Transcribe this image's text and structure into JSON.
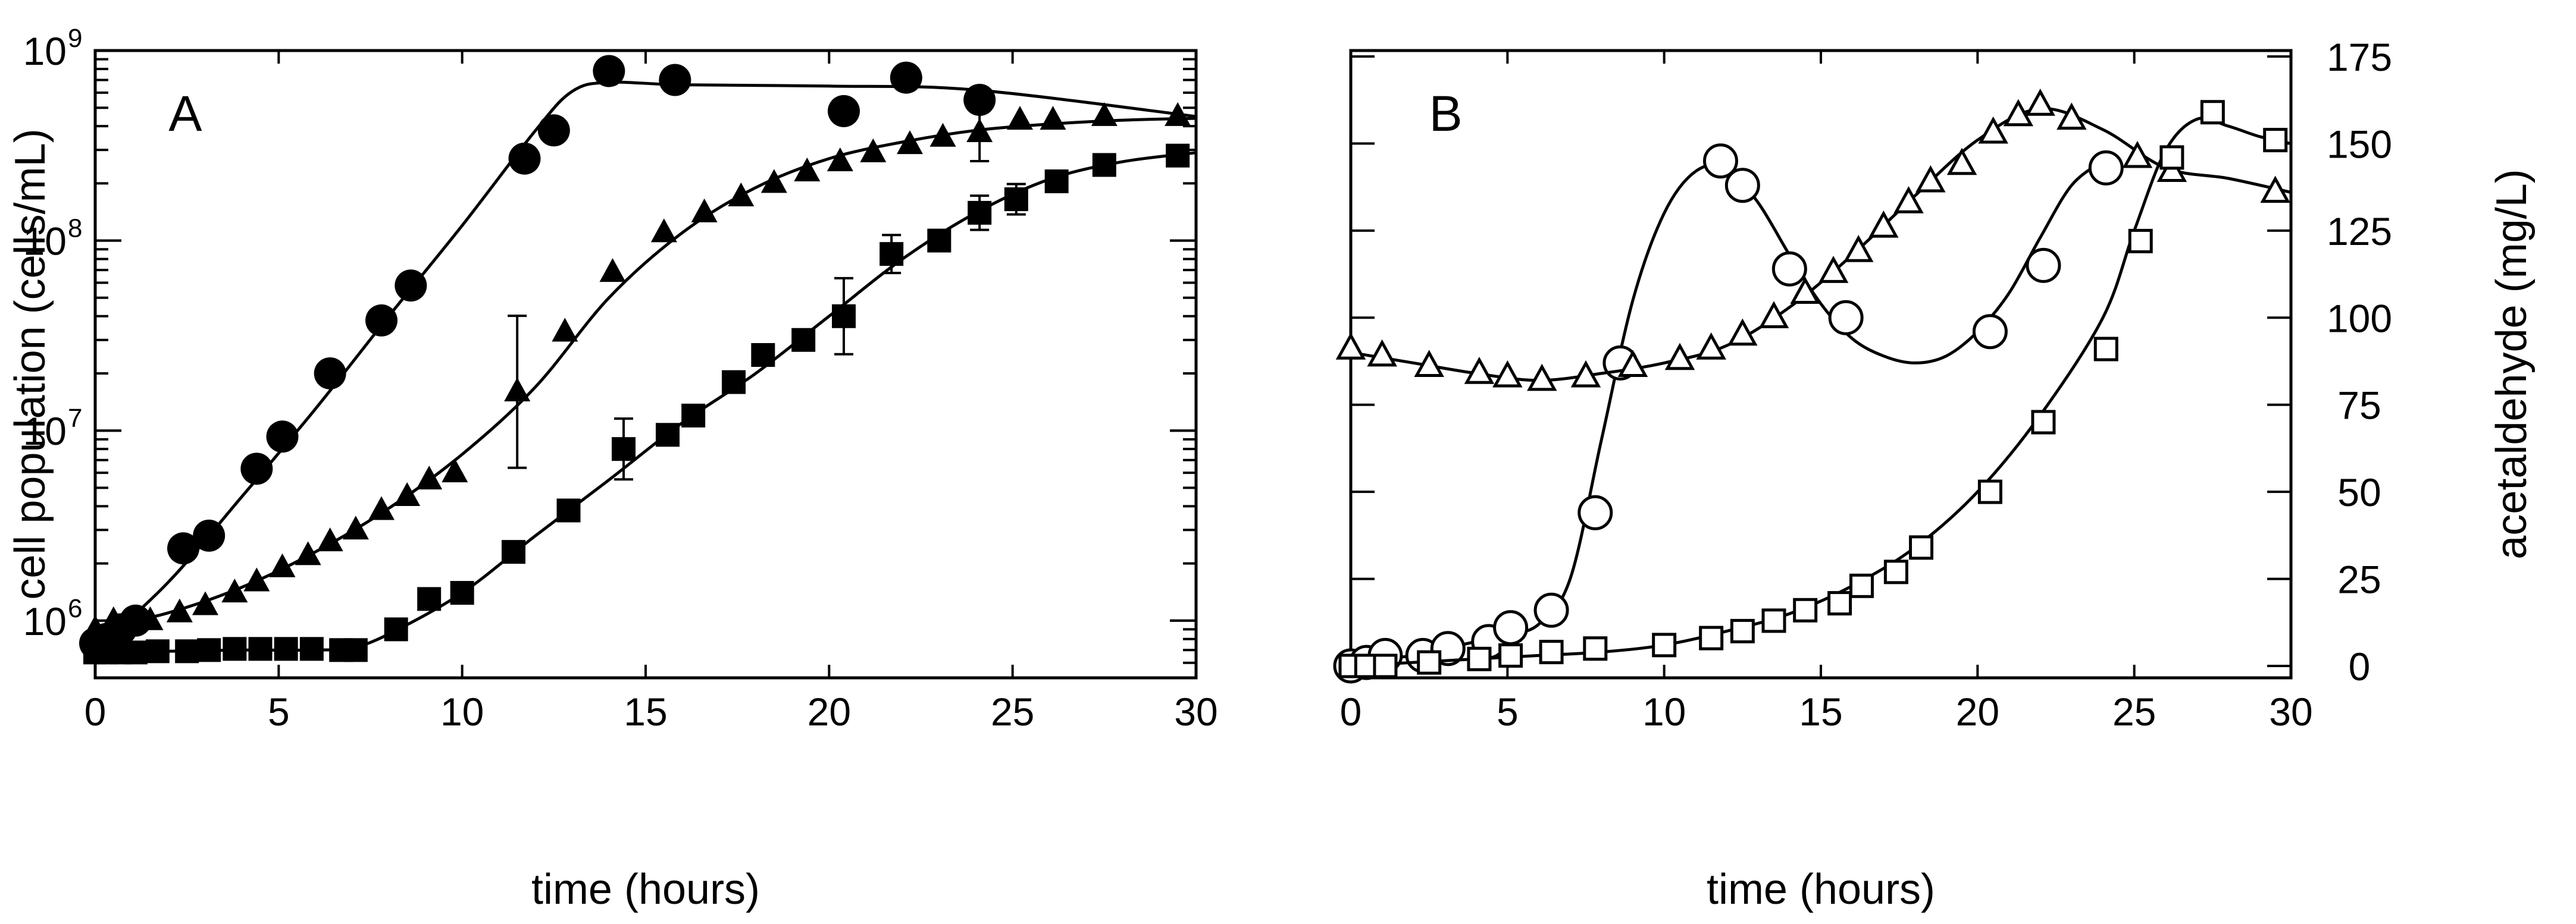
{
  "chart_data": [
    {
      "type": "scatter",
      "panel_label": "A",
      "xlabel": "time (hours)",
      "ylabel": "cell population (cells/mL)",
      "xlim": [
        0,
        30
      ],
      "ylim": [
        500000,
        1000000000
      ],
      "yscale": "log",
      "x_ticks": [
        "0",
        "5",
        "10",
        "15",
        "20",
        "25",
        "30"
      ],
      "y_ticks": [
        {
          "value": 1000000,
          "base": "10",
          "exp": "6"
        },
        {
          "value": 10000000,
          "base": "10",
          "exp": "7"
        },
        {
          "value": 100000000,
          "base": "10",
          "exp": "8"
        },
        {
          "value": 1000000000,
          "base": "10",
          "exp": "9"
        }
      ],
      "grid": false,
      "legend": false,
      "series": [
        {
          "marker": "circle-filled",
          "x": [
            0,
            0.3,
            0.7,
            1.1,
            2.4,
            3.1,
            4.4,
            5.1,
            6.4,
            7.8,
            8.6,
            11.7,
            12.5,
            14.0,
            15.8,
            20.4,
            22.1,
            24.1
          ],
          "y": [
            760000,
            800000,
            900000,
            1000000,
            2400000,
            2800000,
            6300000,
            9300000,
            20000000,
            38000000,
            58000000,
            270000000,
            380000000,
            780000000,
            700000000,
            480000000,
            720000000,
            550000000
          ],
          "fit_x": [
            0,
            2,
            4,
            6,
            8,
            10,
            12,
            13,
            14,
            16,
            20,
            24,
            30
          ],
          "fit_y": [
            700000,
            1600000,
            4500000,
            13000000,
            40000000,
            120000000,
            380000000,
            610000000,
            680000000,
            660000000,
            650000000,
            620000000,
            450000000
          ]
        },
        {
          "marker": "triangle-filled",
          "x": [
            0,
            0.5,
            1.0,
            1.5,
            2.3,
            3.0,
            3.8,
            4.4,
            5.1,
            5.8,
            6.4,
            7.1,
            7.8,
            8.5,
            9.1,
            9.8,
            11.5,
            12.8,
            14.1,
            15.5,
            16.6,
            17.6,
            18.5,
            19.4,
            20.3,
            21.2,
            22.2,
            23.1,
            24.1,
            25.2,
            26.1,
            27.5,
            29.5
          ],
          "y": [
            900000,
            1000000,
            1000000,
            1000000,
            1100000,
            1200000,
            1400000,
            1600000,
            1900000,
            2200000,
            2600000,
            3000000,
            3800000,
            4500000,
            5500000,
            6000000,
            16000000,
            33000000,
            68000000,
            110000000,
            140000000,
            170000000,
            200000000,
            230000000,
            260000000,
            290000000,
            320000000,
            350000000,
            370000000,
            430000000,
            430000000,
            450000000,
            450000000
          ],
          "error": [
            0,
            0,
            0,
            0,
            0,
            0,
            0,
            0,
            0,
            0,
            0,
            0,
            0,
            0,
            0,
            0,
            0.4,
            0,
            0,
            0,
            0,
            0,
            0,
            0,
            0,
            0,
            0,
            0,
            0.15,
            0,
            0,
            0,
            0
          ],
          "fit_x": [
            0,
            2,
            4,
            6,
            8,
            10,
            12,
            14,
            16,
            18,
            20,
            22,
            24,
            26,
            28,
            30
          ],
          "fit_y": [
            900000,
            1100000,
            1500000,
            2300000,
            3900000,
            7500000,
            17000000,
            50000000,
            110000000,
            190000000,
            270000000,
            330000000,
            380000000,
            410000000,
            430000000,
            440000000
          ]
        },
        {
          "marker": "square-filled",
          "x": [
            0,
            0.3,
            0.7,
            1.1,
            1.7,
            2.5,
            3.1,
            3.8,
            4.5,
            5.2,
            5.9,
            6.7,
            7.1,
            8.2,
            9.1,
            10.0,
            11.4,
            12.9,
            14.4,
            15.6,
            16.3,
            17.4,
            18.2,
            19.3,
            20.4,
            21.7,
            23.0,
            24.1,
            25.1,
            26.2,
            27.5,
            29.5
          ],
          "y": [
            680000,
            680000,
            680000,
            680000,
            690000,
            690000,
            700000,
            710000,
            710000,
            710000,
            710000,
            700000,
            700000,
            900000,
            1300000,
            1400000,
            2300000,
            3800000,
            8000000,
            9500000,
            12000000,
            18000000,
            25000000,
            30000000,
            40000000,
            85000000,
            100000000,
            140000000,
            165000000,
            205000000,
            250000000,
            280000000
          ],
          "error": [
            0,
            0,
            0,
            0,
            0,
            0,
            0,
            0,
            0,
            0,
            0,
            0,
            0,
            0,
            0,
            0,
            0,
            0,
            0.16,
            0,
            0,
            0,
            0,
            0,
            0.2,
            0.1,
            0,
            0.09,
            0.08,
            0,
            0,
            0
          ],
          "fit_x": [
            0,
            2,
            4,
            6,
            7,
            8,
            10,
            12,
            14,
            16,
            18,
            20,
            22,
            24,
            26,
            28,
            30
          ],
          "fit_y": [
            680000,
            690000,
            700000,
            700000,
            720000,
            850000,
            1400000,
            2800000,
            5500000,
            11000000,
            20000000,
            40000000,
            80000000,
            140000000,
            210000000,
            260000000,
            290000000
          ]
        }
      ]
    },
    {
      "type": "scatter",
      "panel_label": "B",
      "xlabel": "time (hours)",
      "ylabel_right": "acetaldehyde (mg/L)",
      "xlim": [
        0,
        30
      ],
      "ylim": [
        0,
        175
      ],
      "x_ticks": [
        "0",
        "5",
        "10",
        "15",
        "20",
        "25",
        "30"
      ],
      "y_ticks": [
        "0",
        "25",
        "50",
        "75",
        "100",
        "125",
        "150",
        "175"
      ],
      "grid": false,
      "legend": false,
      "series": [
        {
          "marker": "circle-open",
          "x": [
            0,
            0.5,
            1.1,
            2.3,
            3.1,
            4.4,
            5.1,
            6.4,
            7.8,
            8.6,
            11.8,
            12.5,
            14.0,
            15.8,
            20.4,
            22.1,
            24.1
          ],
          "y": [
            0,
            1,
            3,
            3,
            5,
            7,
            11,
            16,
            44,
            87,
            145,
            138,
            114,
            100,
            96,
            115,
            143
          ],
          "fit_x": [
            0,
            1,
            2,
            3,
            4,
            5,
            6,
            7,
            8,
            9,
            10,
            11,
            12,
            13,
            14,
            15,
            16,
            17,
            18,
            19,
            20,
            21,
            22,
            23,
            24
          ],
          "fit_y": [
            1,
            2,
            3,
            5,
            7,
            9,
            12,
            25,
            65,
            105,
            130,
            142,
            143,
            133,
            118,
            104,
            94,
            89,
            87,
            89,
            96,
            107,
            123,
            138,
            145
          ]
        },
        {
          "marker": "triangle-open",
          "x": [
            0,
            1.0,
            2.5,
            4.1,
            5.0,
            6.1,
            7.5,
            9.0,
            10.5,
            11.5,
            12.5,
            13.5,
            14.5,
            15.4,
            16.2,
            17.0,
            17.8,
            18.5,
            19.5,
            20.5,
            21.3,
            22.0,
            23.0,
            25.1,
            26.2,
            29.5
          ],
          "y": [
            91,
            89,
            86,
            84,
            83,
            82,
            83,
            86,
            88,
            91,
            95,
            100,
            107,
            113,
            119,
            126,
            133,
            139,
            144,
            153,
            158,
            161,
            157,
            146,
            142,
            136
          ],
          "fit_x": [
            0,
            2,
            4,
            6,
            8,
            10,
            12,
            14,
            16,
            18,
            20,
            22,
            24,
            26,
            28,
            30
          ],
          "fit_y": [
            90,
            87,
            84,
            82,
            84,
            87,
            92,
            103,
            118,
            135,
            151,
            160,
            154,
            143,
            140,
            136
          ]
        },
        {
          "marker": "square-open",
          "x": [
            0,
            0.5,
            1.1,
            2.5,
            4.1,
            5.1,
            6.4,
            7.8,
            10.0,
            11.5,
            12.5,
            13.5,
            14.5,
            15.6,
            16.3,
            17.4,
            18.2,
            20.4,
            22.1,
            24.1,
            25.2,
            26.2,
            27.5,
            29.5
          ],
          "y": [
            0,
            0,
            0,
            1,
            2,
            3,
            4,
            5,
            6,
            8,
            10,
            13,
            16,
            18,
            23,
            27,
            34,
            50,
            70,
            91,
            122,
            146,
            159,
            151
          ],
          "fit_x": [
            0,
            2,
            4,
            6,
            8,
            10,
            12,
            14,
            16,
            18,
            20,
            22,
            24,
            25,
            26,
            27,
            28,
            29,
            30
          ],
          "fit_y": [
            0,
            1,
            2,
            3,
            4,
            6,
            10,
            15,
            23,
            34,
            50,
            72,
            100,
            125,
            148,
            157,
            155,
            152,
            150
          ]
        }
      ]
    }
  ]
}
